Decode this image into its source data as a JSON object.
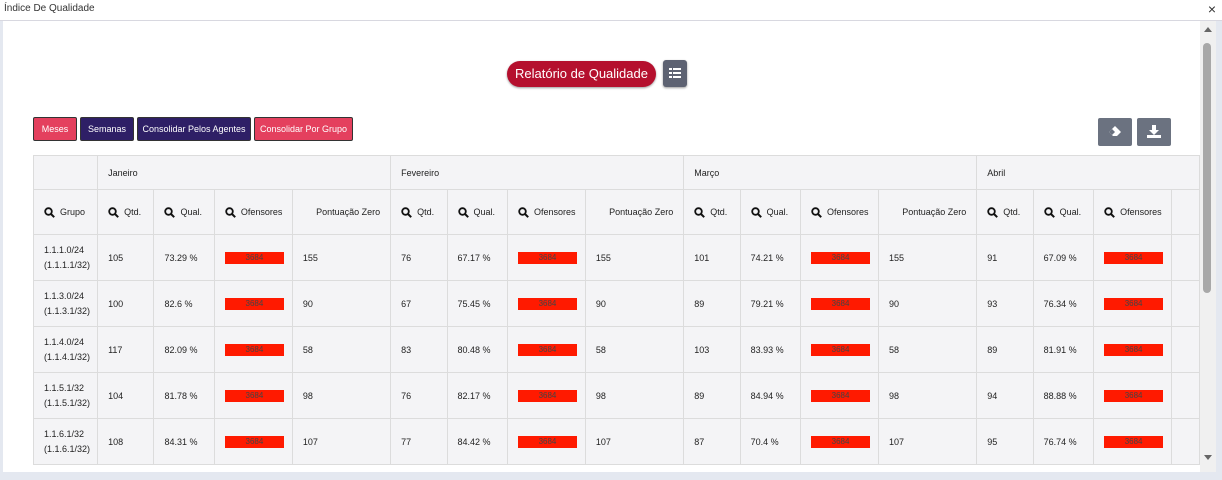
{
  "window": {
    "title": "Índice De Qualidade",
    "close_glyph": "×"
  },
  "header": {
    "report_title": "Relatório de Qualidade",
    "grid_icon": "grid-list-icon"
  },
  "filters": {
    "meses": "Meses",
    "semanas": "Semanas",
    "agentes": "Consolidar Pelos Agentes",
    "grupo": "Consolidar Por Grupo"
  },
  "tools": {
    "eraser_icon": "eraser-icon",
    "download_icon": "download-icon"
  },
  "months": [
    "Janeiro",
    "Fevereiro",
    "Março",
    "Abril"
  ],
  "columns": {
    "grupo": "Grupo",
    "qtd": "Qtd.",
    "qual": "Qual.",
    "ofensores": "Ofensores",
    "pontuacao_zero": "Pontuação Zero"
  },
  "ofensores_value": "3684",
  "colors": {
    "accent": "#b5102e",
    "pink": "#e4405e",
    "navy": "#2e1f66",
    "offender_bar": "#ff1a00"
  },
  "rows": [
    {
      "grupo_line1": "1.1.1.0/24",
      "grupo_line2": "(1.1.1.1/32)",
      "m": [
        {
          "qtd": "105",
          "qual": "73.29 %",
          "pz": "155"
        },
        {
          "qtd": "76",
          "qual": "67.17 %",
          "pz": "155"
        },
        {
          "qtd": "101",
          "qual": "74.21 %",
          "pz": "155"
        },
        {
          "qtd": "91",
          "qual": "67.09 %"
        }
      ]
    },
    {
      "grupo_line1": "1.1.3.0/24",
      "grupo_line2": "(1.1.3.1/32)",
      "m": [
        {
          "qtd": "100",
          "qual": "82.6 %",
          "pz": "90"
        },
        {
          "qtd": "67",
          "qual": "75.45 %",
          "pz": "90"
        },
        {
          "qtd": "89",
          "qual": "79.21 %",
          "pz": "90"
        },
        {
          "qtd": "93",
          "qual": "76.34 %"
        }
      ]
    },
    {
      "grupo_line1": "1.1.4.0/24",
      "grupo_line2": "(1.1.4.1/32)",
      "m": [
        {
          "qtd": "117",
          "qual": "82.09 %",
          "pz": "58"
        },
        {
          "qtd": "83",
          "qual": "80.48 %",
          "pz": "58"
        },
        {
          "qtd": "103",
          "qual": "83.93 %",
          "pz": "58"
        },
        {
          "qtd": "89",
          "qual": "81.91 %"
        }
      ]
    },
    {
      "grupo_line1": "1.1.5.1/32",
      "grupo_line2": "(1.1.5.1/32)",
      "m": [
        {
          "qtd": "104",
          "qual": "81.78 %",
          "pz": "98"
        },
        {
          "qtd": "76",
          "qual": "82.17 %",
          "pz": "98"
        },
        {
          "qtd": "89",
          "qual": "84.94 %",
          "pz": "98"
        },
        {
          "qtd": "94",
          "qual": "88.88 %"
        }
      ]
    },
    {
      "grupo_line1": "1.1.6.1/32",
      "grupo_line2": "(1.1.6.1/32)",
      "m": [
        {
          "qtd": "108",
          "qual": "84.31 %",
          "pz": "107"
        },
        {
          "qtd": "77",
          "qual": "84.42 %",
          "pz": "107"
        },
        {
          "qtd": "87",
          "qual": "70.4 %",
          "pz": "107"
        },
        {
          "qtd": "95",
          "qual": "76.74 %"
        }
      ]
    }
  ]
}
